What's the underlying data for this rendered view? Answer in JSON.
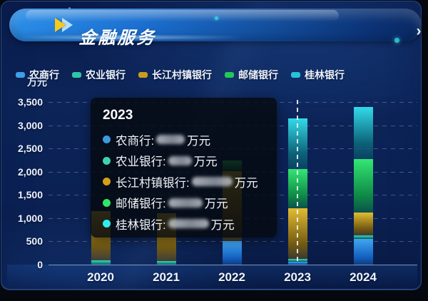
{
  "header": {
    "title": "金融服务",
    "next_arrow": "›"
  },
  "axis_unit": "万元",
  "legend": [
    {
      "label": "农商行",
      "color": "#3D9FE8"
    },
    {
      "label": "农业银行",
      "color": "#2EC7A6"
    },
    {
      "label": "长江村镇银行",
      "color": "#C89E1E"
    },
    {
      "label": "邮储银行",
      "color": "#22C95A"
    },
    {
      "label": "桂林银行",
      "color": "#29C2D8"
    }
  ],
  "tooltip": {
    "title": "2023",
    "values_blurred": true,
    "rows": [
      {
        "label": "农商行:",
        "dot_color": "#3A9BE0",
        "unit": "万元"
      },
      {
        "label": "农业银行:",
        "dot_color": "#3ED2AC",
        "unit": "万元"
      },
      {
        "label": "长江村镇银行:",
        "dot_color": "#D4A017",
        "unit": "万元"
      },
      {
        "label": "邮储银行:",
        "dot_color": "#2EE865",
        "unit": "万元"
      },
      {
        "label": "桂林银行:",
        "dot_color": "#2FEDED",
        "unit": "万元"
      }
    ]
  },
  "chart_data": {
    "type": "bar",
    "stacked": true,
    "title": "金融服务",
    "ylabel": "万元",
    "ylim": [
      0,
      3500
    ],
    "y_ticks": [
      "0",
      "500",
      "1,000",
      "1,500",
      "2,000",
      "2,500",
      "3,000",
      "3,500"
    ],
    "grid": true,
    "legend_position": "top",
    "hover_category": "2023",
    "categories": [
      "2020",
      "2021",
      "2022",
      "2023",
      "2024"
    ],
    "series": [
      {
        "name": "农商行",
        "color": "#41A6F0",
        "color_deep": "#1565C8",
        "values": [
          0,
          0,
          510,
          60,
          550
        ]
      },
      {
        "name": "农业银行",
        "color": "#3BD8BC",
        "color_deep": "#148C7A",
        "values": [
          90,
          70,
          0,
          60,
          80
        ]
      },
      {
        "name": "长江村镇银行",
        "color": "#E2BC34",
        "color_deep": "#7A5E0E",
        "values": [
          1060,
          1030,
          1500,
          1090,
          490
        ]
      },
      {
        "name": "邮储银行",
        "color": "#33E673",
        "color_deep": "#0E8C45",
        "values": [
          0,
          0,
          230,
          850,
          1150
        ]
      },
      {
        "name": "桂林银行",
        "color": "#33DAEA",
        "color_deep": "#0C6478",
        "values": [
          0,
          0,
          0,
          1090,
          1120
        ]
      }
    ]
  }
}
